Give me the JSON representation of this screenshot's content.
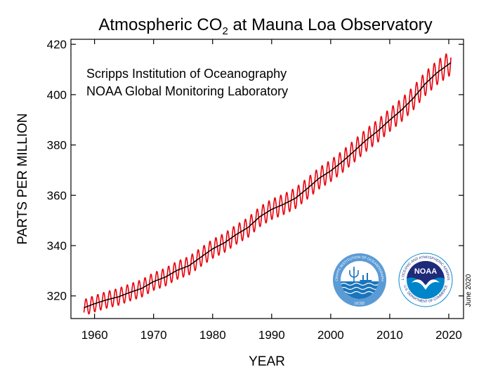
{
  "chart_data": {
    "type": "line",
    "title": "Atmospheric CO",
    "title_subscript": "2",
    "title_suffix": " at Mauna Loa Observatory",
    "xlabel": "YEAR",
    "ylabel": "PARTS PER MILLION",
    "xlim": [
      1956,
      2022.5
    ],
    "ylim": [
      311,
      422
    ],
    "xticks": [
      1960,
      1970,
      1980,
      1990,
      2000,
      2010,
      2020
    ],
    "yticks": [
      320,
      340,
      360,
      380,
      400,
      420
    ],
    "grid": false,
    "annotations": [
      "Scripps Institution of Oceanography",
      "NOAA Global Monitoring Laboratory"
    ],
    "date_stamp": "June 2020",
    "seasonal_amplitude_ppm": 3.2,
    "series": [
      {
        "color": "#e8000b",
        "style": "monthly, with seasonal cycle",
        "x": [
          1958.2,
          1960,
          1962,
          1964,
          1966,
          1968,
          1970,
          1972,
          1974,
          1976,
          1978,
          1980,
          1982,
          1984,
          1986,
          1988,
          1990,
          1992,
          1994,
          1996,
          1998,
          2000,
          2002,
          2004,
          2006,
          2008,
          2010,
          2012,
          2014,
          2016,
          2018,
          2020.4
        ],
        "values": [
          315.3,
          316.9,
          318.4,
          319.6,
          321.4,
          323.0,
          325.7,
          327.5,
          330.2,
          332.0,
          335.4,
          338.7,
          341.1,
          344.4,
          347.2,
          351.5,
          354.4,
          356.4,
          358.8,
          362.6,
          366.7,
          369.7,
          373.4,
          377.6,
          381.9,
          385.6,
          389.9,
          393.9,
          398.6,
          404.3,
          408.7,
          412.8
        ]
      },
      {
        "color": "#000000",
        "style": "deseasonalized trend",
        "x": [
          1958.2,
          1960,
          1962,
          1964,
          1966,
          1968,
          1970,
          1972,
          1974,
          1976,
          1978,
          1980,
          1982,
          1984,
          1986,
          1988,
          1990,
          1992,
          1994,
          1996,
          1998,
          2000,
          2002,
          2004,
          2006,
          2008,
          2010,
          2012,
          2014,
          2016,
          2018,
          2020.4
        ],
        "values": [
          315.3,
          316.9,
          318.4,
          319.6,
          321.4,
          323.0,
          325.7,
          327.5,
          330.2,
          332.0,
          335.4,
          338.7,
          341.1,
          344.4,
          347.2,
          351.5,
          354.4,
          356.4,
          358.8,
          362.6,
          366.7,
          369.7,
          373.4,
          377.6,
          381.9,
          385.6,
          389.9,
          393.9,
          398.6,
          404.3,
          408.7,
          412.8
        ]
      }
    ]
  },
  "logos": [
    {
      "name": "scripps",
      "ring_text": "SCRIPPS INSTITUTION OF OCEANOGRAPHY",
      "bottom_text": "UCSD",
      "ring_color": "#5b9bd5",
      "wave_color": "#1a75bb"
    },
    {
      "name": "noaa",
      "ring_text": "NATIONAL OCEANIC AND ATMOSPHERIC ADMINISTRATION",
      "bottom_text": "U.S. DEPARTMENT OF COMMERCE",
      "center_text": "NOAA",
      "ring_color": "#ffffff",
      "top_color": "#1f2a7a",
      "bottom_color": "#0085ca"
    }
  ]
}
